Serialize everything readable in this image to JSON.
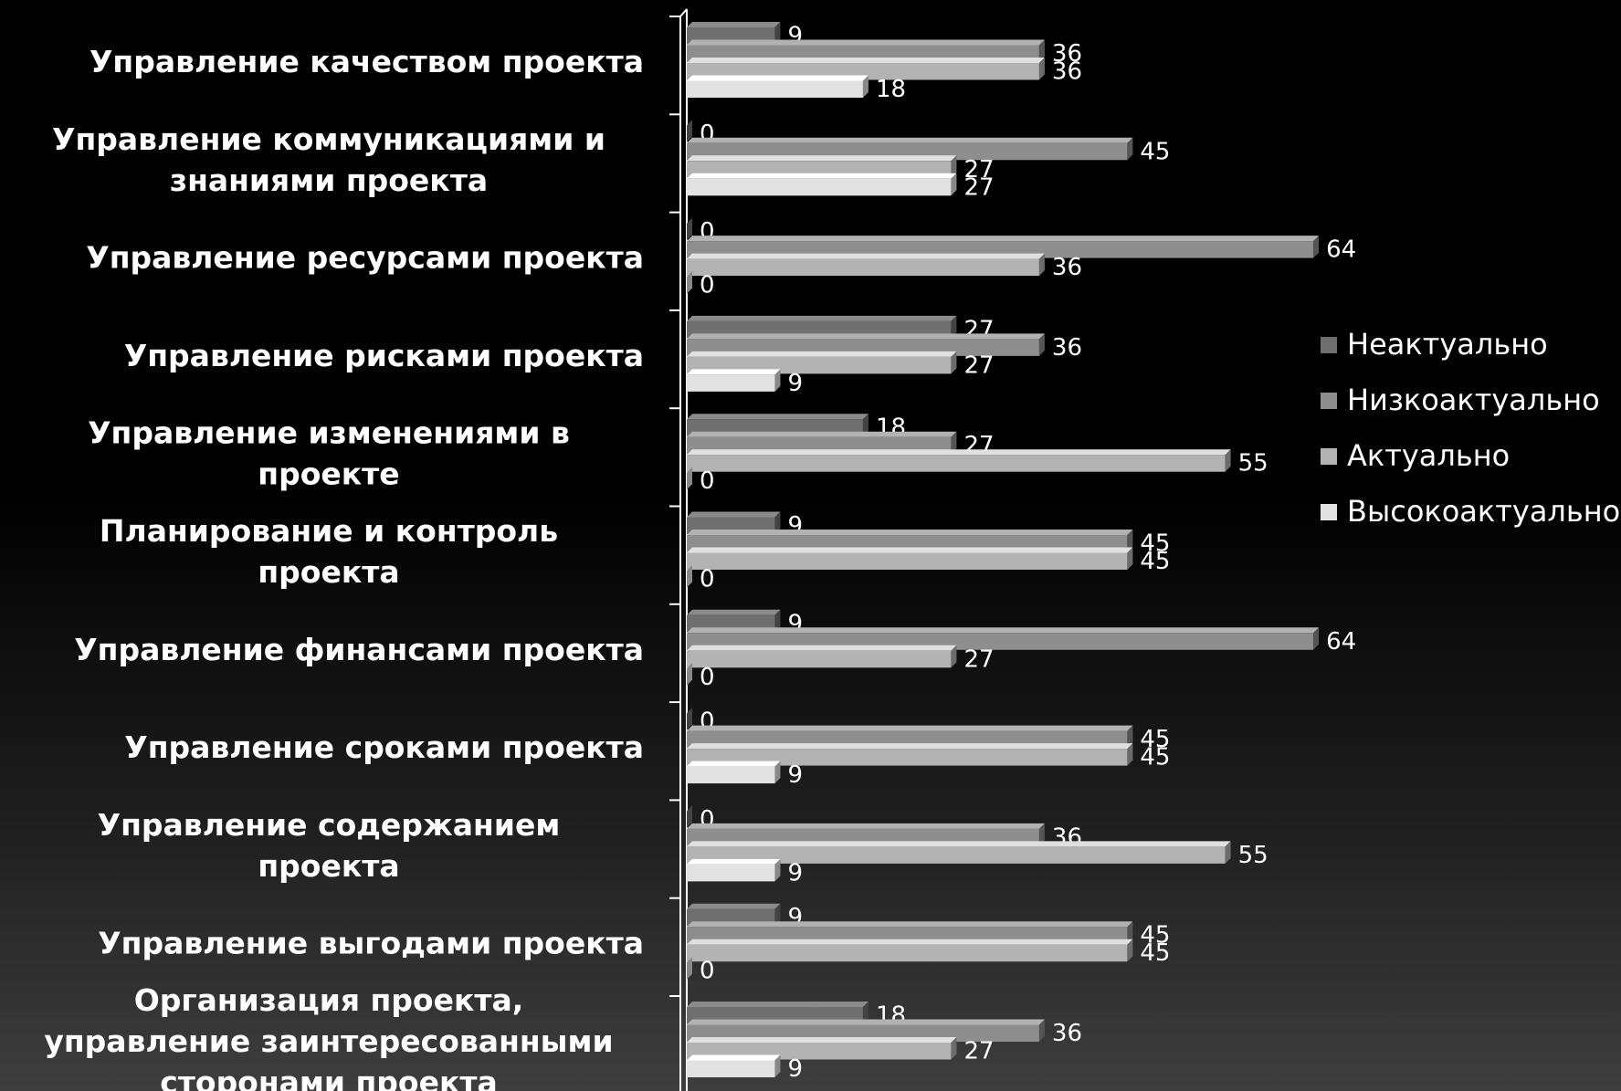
{
  "chart_data": {
    "type": "bar",
    "orientation": "horizontal",
    "categories": [
      "Управление качеством проекта",
      "Управление коммуникациями и знаниями проекта",
      "Управление ресурсами проекта",
      "Управление рисками проекта",
      "Управление изменениями в проекте",
      "Планирование и контроль проекта",
      "Управление финансами проекта",
      "Управление сроками проекта",
      "Управление содержанием  проекта",
      "Управление выгодами проекта",
      "Организация проекта, управление заинтересованными сторонами проекта"
    ],
    "series": [
      {
        "name": "Неактуально",
        "color": "#6f6f6f",
        "values": [
          9,
          0,
          0,
          27,
          18,
          9,
          9,
          0,
          0,
          9,
          18
        ]
      },
      {
        "name": "Низкоактуально",
        "color": "#8e8e8e",
        "values": [
          36,
          45,
          64,
          36,
          27,
          45,
          64,
          45,
          36,
          45,
          36
        ]
      },
      {
        "name": "Актуально",
        "color": "#b3b3b3",
        "values": [
          36,
          27,
          36,
          27,
          55,
          45,
          27,
          45,
          55,
          45,
          27
        ]
      },
      {
        "name": "Высокоактуально",
        "color": "#e2e2e2",
        "values": [
          18,
          27,
          0,
          9,
          0,
          0,
          0,
          9,
          9,
          0,
          9
        ]
      }
    ],
    "title": "",
    "xlabel": "",
    "ylabel": "",
    "xlim": [
      0,
      70
    ],
    "grid": false,
    "legend": "right",
    "data_labels": true
  }
}
